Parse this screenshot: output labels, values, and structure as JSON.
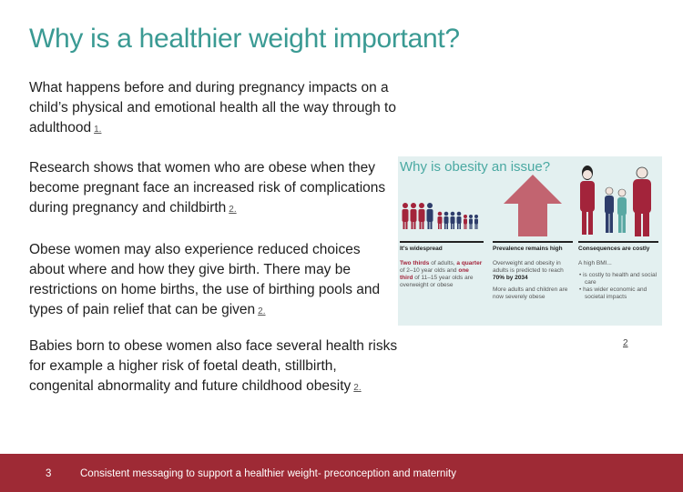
{
  "slide": {
    "title": "Why is a healthier weight important?",
    "paragraphs": [
      {
        "text": "What happens before and during pregnancy impacts on a child’s physical and emotional health all the way through to adulthood",
        "ref": "1."
      },
      {
        "text": "Research shows that women who are obese when they become pregnant face an increased risk of complications during pregnancy and childbirth",
        "ref": "2."
      },
      {
        "text": "Obese women may also experience reduced choices about where and how they give birth. There may be restrictions on home births, the use of birthing pools and types of pain relief that can be given",
        "ref": "2."
      },
      {
        "text": "Babies born to obese women also face several health risks for example a higher risk of foetal death, stillbirth, congenital abnormality and future childhood obesity",
        "ref": "2."
      }
    ],
    "image_ref": "2"
  },
  "infographic": {
    "title": "Why is obesity an issue?",
    "colors": {
      "red": "#a3243b",
      "navy": "#2e3d6b",
      "teal": "#5aa8a3",
      "arrow": "#c26470"
    },
    "columns": [
      {
        "heading": "It's widespread",
        "highlight1": "Two thirds",
        "text1": "of adults,",
        "highlight2": "a quarter",
        "text2": "of 2–10 year olds and",
        "highlight3": "one third",
        "text3": "of 11–15 year olds are overweight or obese"
      },
      {
        "heading": "Prevalence remains high",
        "text1": "Overweight and obesity in adults is predicted to reach",
        "highlight": "70% by 2034",
        "text2": "More adults and children are now severely obese"
      },
      {
        "heading": "Consequences are costly",
        "intro": "A high BMI...",
        "bullets": [
          "is costly to health and social care",
          "has wider economic and societal impacts"
        ]
      }
    ]
  },
  "footer": {
    "page_number": "3",
    "text": "Consistent messaging to support a healthier weight- preconception and maternity"
  }
}
